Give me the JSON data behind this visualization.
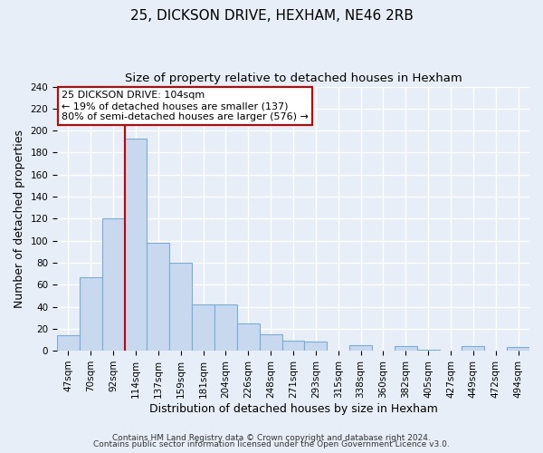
{
  "title": "25, DICKSON DRIVE, HEXHAM, NE46 2RB",
  "subtitle": "Size of property relative to detached houses in Hexham",
  "xlabel": "Distribution of detached houses by size in Hexham",
  "ylabel": "Number of detached properties",
  "bar_labels": [
    "47sqm",
    "70sqm",
    "92sqm",
    "114sqm",
    "137sqm",
    "159sqm",
    "181sqm",
    "204sqm",
    "226sqm",
    "248sqm",
    "271sqm",
    "293sqm",
    "315sqm",
    "338sqm",
    "360sqm",
    "382sqm",
    "405sqm",
    "427sqm",
    "449sqm",
    "472sqm",
    "494sqm"
  ],
  "bar_heights": [
    14,
    67,
    120,
    193,
    98,
    80,
    42,
    42,
    25,
    15,
    9,
    8,
    0,
    5,
    0,
    4,
    1,
    0,
    4,
    0,
    3
  ],
  "bar_color": "#c8d9ef",
  "bar_edge_color": "#7aadd4",
  "vline_x_index": 3,
  "vline_color": "#cc0000",
  "ylim": [
    0,
    240
  ],
  "yticks": [
    0,
    20,
    40,
    60,
    80,
    100,
    120,
    140,
    160,
    180,
    200,
    220,
    240
  ],
  "annotation_text": "25 DICKSON DRIVE: 104sqm\n← 19% of detached houses are smaller (137)\n80% of semi-detached houses are larger (576) →",
  "annotation_box_color": "#ffffff",
  "annotation_box_edge": "#cc0000",
  "footer_line1": "Contains HM Land Registry data © Crown copyright and database right 2024.",
  "footer_line2": "Contains public sector information licensed under the Open Government Licence v3.0.",
  "background_color": "#e8eef8",
  "plot_background": "#e8eef8",
  "grid_color": "#ffffff",
  "title_fontsize": 11,
  "subtitle_fontsize": 9.5,
  "label_fontsize": 9,
  "tick_fontsize": 7.5,
  "annotation_fontsize": 8,
  "footer_fontsize": 6.5
}
